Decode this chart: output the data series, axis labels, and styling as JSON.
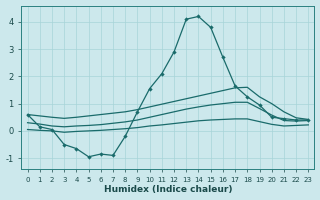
{
  "bg_color": "#cce8ec",
  "grid_color": "#a8d4d8",
  "line_color": "#1a6b6b",
  "xlabel": "Humidex (Indice chaleur)",
  "x": [
    0,
    1,
    2,
    3,
    4,
    5,
    6,
    7,
    8,
    9,
    10,
    11,
    12,
    13,
    14,
    15,
    16,
    17,
    18,
    19,
    20,
    21,
    22,
    23
  ],
  "spike_line": [
    0.6,
    0.15,
    0.05,
    -0.5,
    -0.65,
    -0.95,
    -0.85,
    -0.9,
    -0.2,
    0.7,
    1.55,
    2.1,
    2.9,
    4.1,
    4.2,
    3.8,
    2.7,
    1.65,
    1.25,
    0.95,
    0.5,
    0.45,
    0.4,
    0.4
  ],
  "upper_line": [
    0.6,
    0.55,
    0.5,
    0.46,
    0.5,
    0.55,
    0.6,
    0.65,
    0.7,
    0.78,
    0.88,
    0.98,
    1.08,
    1.18,
    1.28,
    1.38,
    1.48,
    1.58,
    1.6,
    1.25,
    1.0,
    0.7,
    0.48,
    0.42
  ],
  "mid_line": [
    0.3,
    0.25,
    0.18,
    0.15,
    0.18,
    0.2,
    0.23,
    0.28,
    0.33,
    0.4,
    0.5,
    0.6,
    0.7,
    0.8,
    0.88,
    0.95,
    1.0,
    1.05,
    1.05,
    0.82,
    0.58,
    0.38,
    0.36,
    0.38
  ],
  "lower_line": [
    0.05,
    0.02,
    0.0,
    -0.05,
    -0.02,
    0.0,
    0.02,
    0.05,
    0.08,
    0.12,
    0.18,
    0.22,
    0.27,
    0.32,
    0.37,
    0.4,
    0.42,
    0.44,
    0.44,
    0.34,
    0.24,
    0.18,
    0.2,
    0.22
  ],
  "ylim": [
    -1.4,
    4.6
  ],
  "yticks": [
    -1,
    0,
    1,
    2,
    3,
    4
  ],
  "xlim": [
    -0.5,
    23.5
  ]
}
